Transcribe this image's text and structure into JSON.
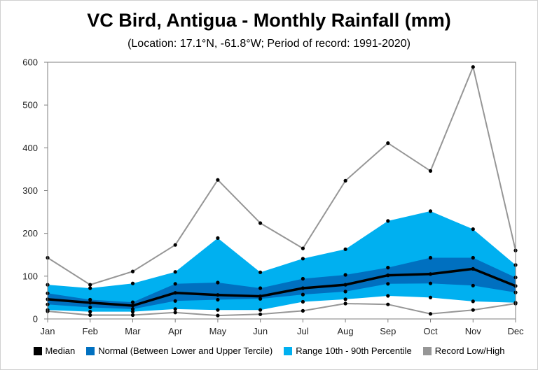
{
  "title": "VC Bird, Antigua - Monthly Rainfall (mm)",
  "subtitle": "(Location: 17.1°N, -61.8°W; Period of record: 1991-2020)",
  "colors": {
    "median": "#000000",
    "normal": "#0070c0",
    "range": "#00b0f0",
    "record": "#969696"
  },
  "chart_data": {
    "type": "area",
    "title": "VC Bird, Antigua - Monthly Rainfall (mm)",
    "subtitle": "(Location: 17.1°N, -61.8°W; Period of record: 1991-2020)",
    "categories": [
      "Jan",
      "Feb",
      "Mar",
      "Apr",
      "May",
      "Jun",
      "Jul",
      "Aug",
      "Sep",
      "Oct",
      "Nov",
      "Dec"
    ],
    "ylim": [
      0,
      600
    ],
    "yticks": [
      0,
      100,
      200,
      300,
      400,
      500,
      600
    ],
    "grid": false,
    "legend_position": "bottom",
    "series": [
      {
        "name": "Median",
        "values": [
          46,
          38,
          31,
          61,
          56,
          53,
          72,
          80,
          102,
          105,
          117,
          77
        ]
      },
      {
        "name": "Normal (Between Lower and Upper Tercile)",
        "lower": [
          34,
          27,
          23,
          42,
          45,
          47,
          57,
          64,
          82,
          83,
          78,
          62
        ],
        "upper": [
          60,
          45,
          39,
          82,
          85,
          72,
          94,
          103,
          120,
          143,
          143,
          97
        ]
      },
      {
        "name": "Range 10th - 90th Percentile",
        "lower": [
          21,
          17,
          17,
          23,
          21,
          21,
          40,
          46,
          54,
          50,
          41,
          38
        ],
        "upper": [
          80,
          72,
          83,
          110,
          189,
          109,
          141,
          163,
          229,
          252,
          210,
          126
        ]
      },
      {
        "name": "Record Low/High",
        "lower": [
          18,
          9,
          9,
          15,
          8,
          11,
          19,
          36,
          34,
          12,
          21,
          36
        ],
        "upper": [
          143,
          80,
          111,
          173,
          325,
          224,
          165,
          323,
          411,
          346,
          589,
          160
        ]
      }
    ]
  }
}
